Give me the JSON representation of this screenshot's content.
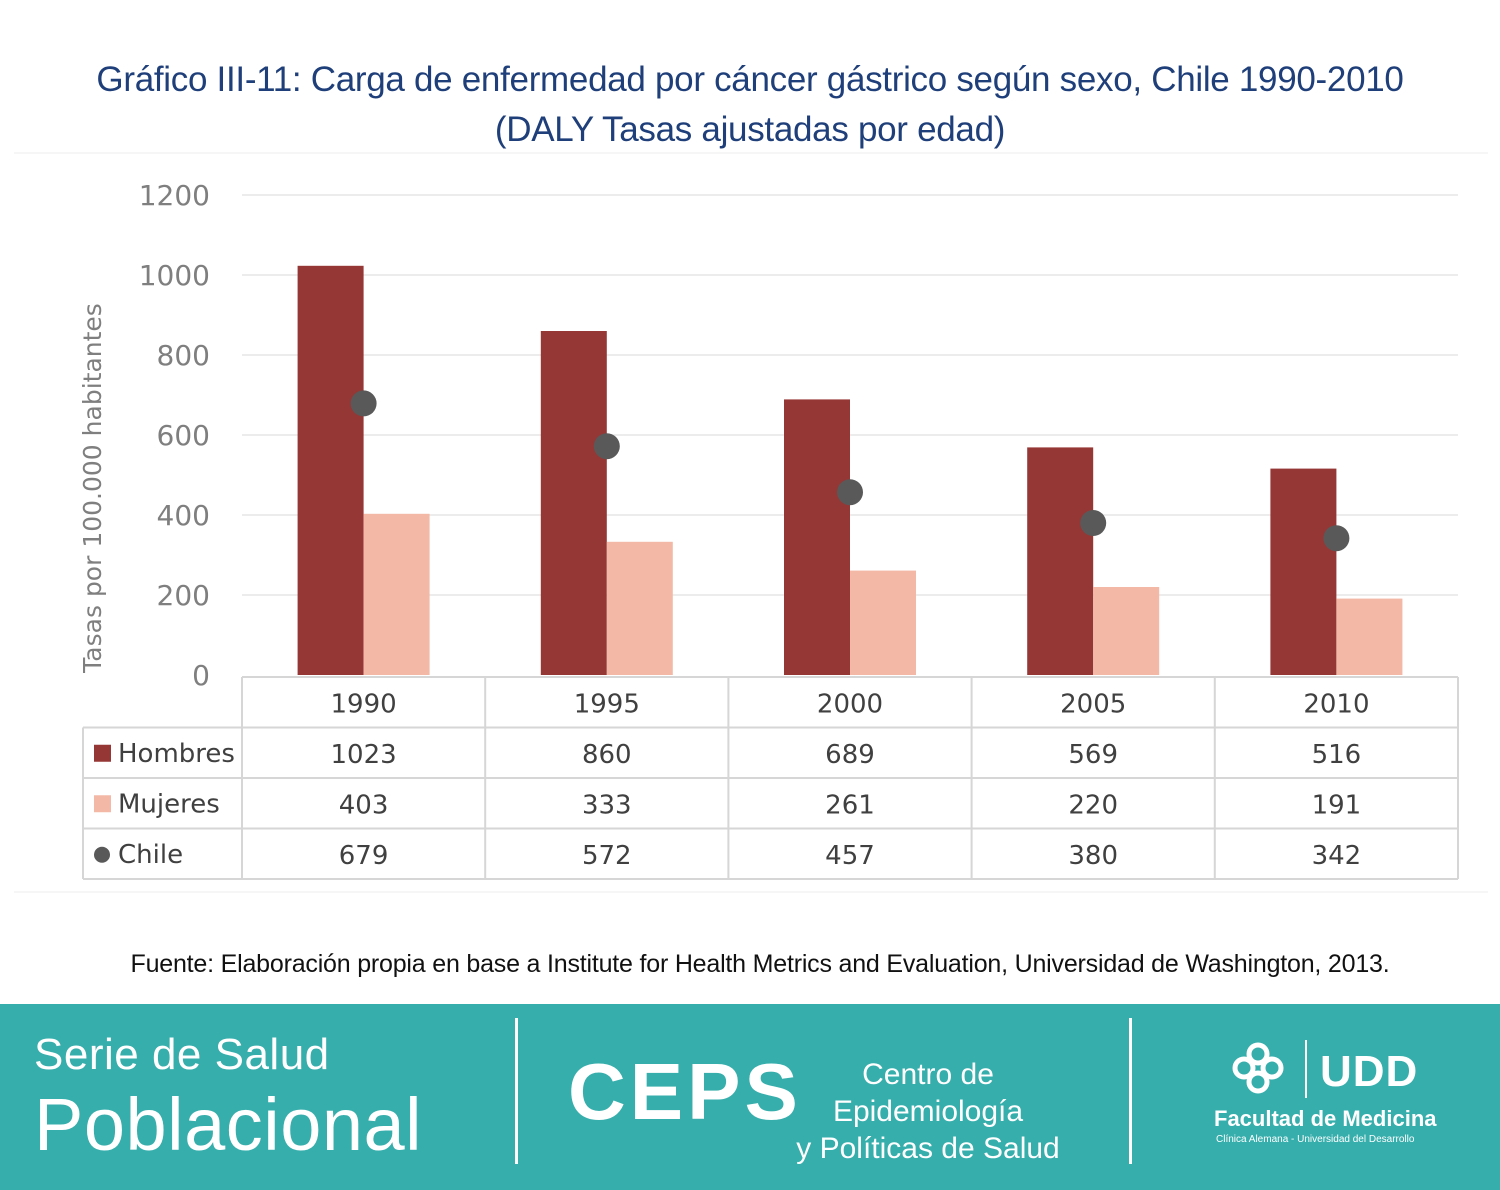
{
  "title_line1": "Gráfico III-11: Carga de enfermedad por cáncer gástrico según sexo, Chile 1990-2010",
  "title_line2": "(DALY Tasas ajustadas por edad)",
  "chart_data": {
    "type": "bar",
    "categories": [
      "1990",
      "1995",
      "2000",
      "2005",
      "2010"
    ],
    "series": [
      {
        "name": "Hombres",
        "kind": "bar",
        "color": "#953735",
        "values": [
          1023,
          860,
          689,
          569,
          516
        ]
      },
      {
        "name": "Mujeres",
        "kind": "bar",
        "color": "#f4b9a6",
        "values": [
          403,
          333,
          261,
          220,
          191
        ]
      },
      {
        "name": "Chile",
        "kind": "point",
        "color": "#595959",
        "values": [
          679,
          572,
          457,
          380,
          342
        ]
      }
    ],
    "ylabel": "Tasas por 100.000 habitantes",
    "ylim": [
      0,
      1200
    ],
    "yticks": [
      0,
      200,
      400,
      600,
      800,
      1000,
      1200
    ],
    "grid": true,
    "legend": "data table below chart"
  },
  "source": "Fuente: Elaboración propia en base a Institute for Health Metrics and Evaluation, Universidad de Washington, 2013.",
  "footer": {
    "serie_small": "Serie de Salud",
    "serie_big": "Poblacional",
    "ceps": "CEPS",
    "ceps_sub_1": "Centro de Epidemiología",
    "ceps_sub_2": "y Políticas de Salud",
    "logo_text": "UDD",
    "faculty": "Facultad de Medicina",
    "faculty_sub": "Clínica Alemana - Universidad del Desarrollo",
    "background": "#36aeac"
  }
}
